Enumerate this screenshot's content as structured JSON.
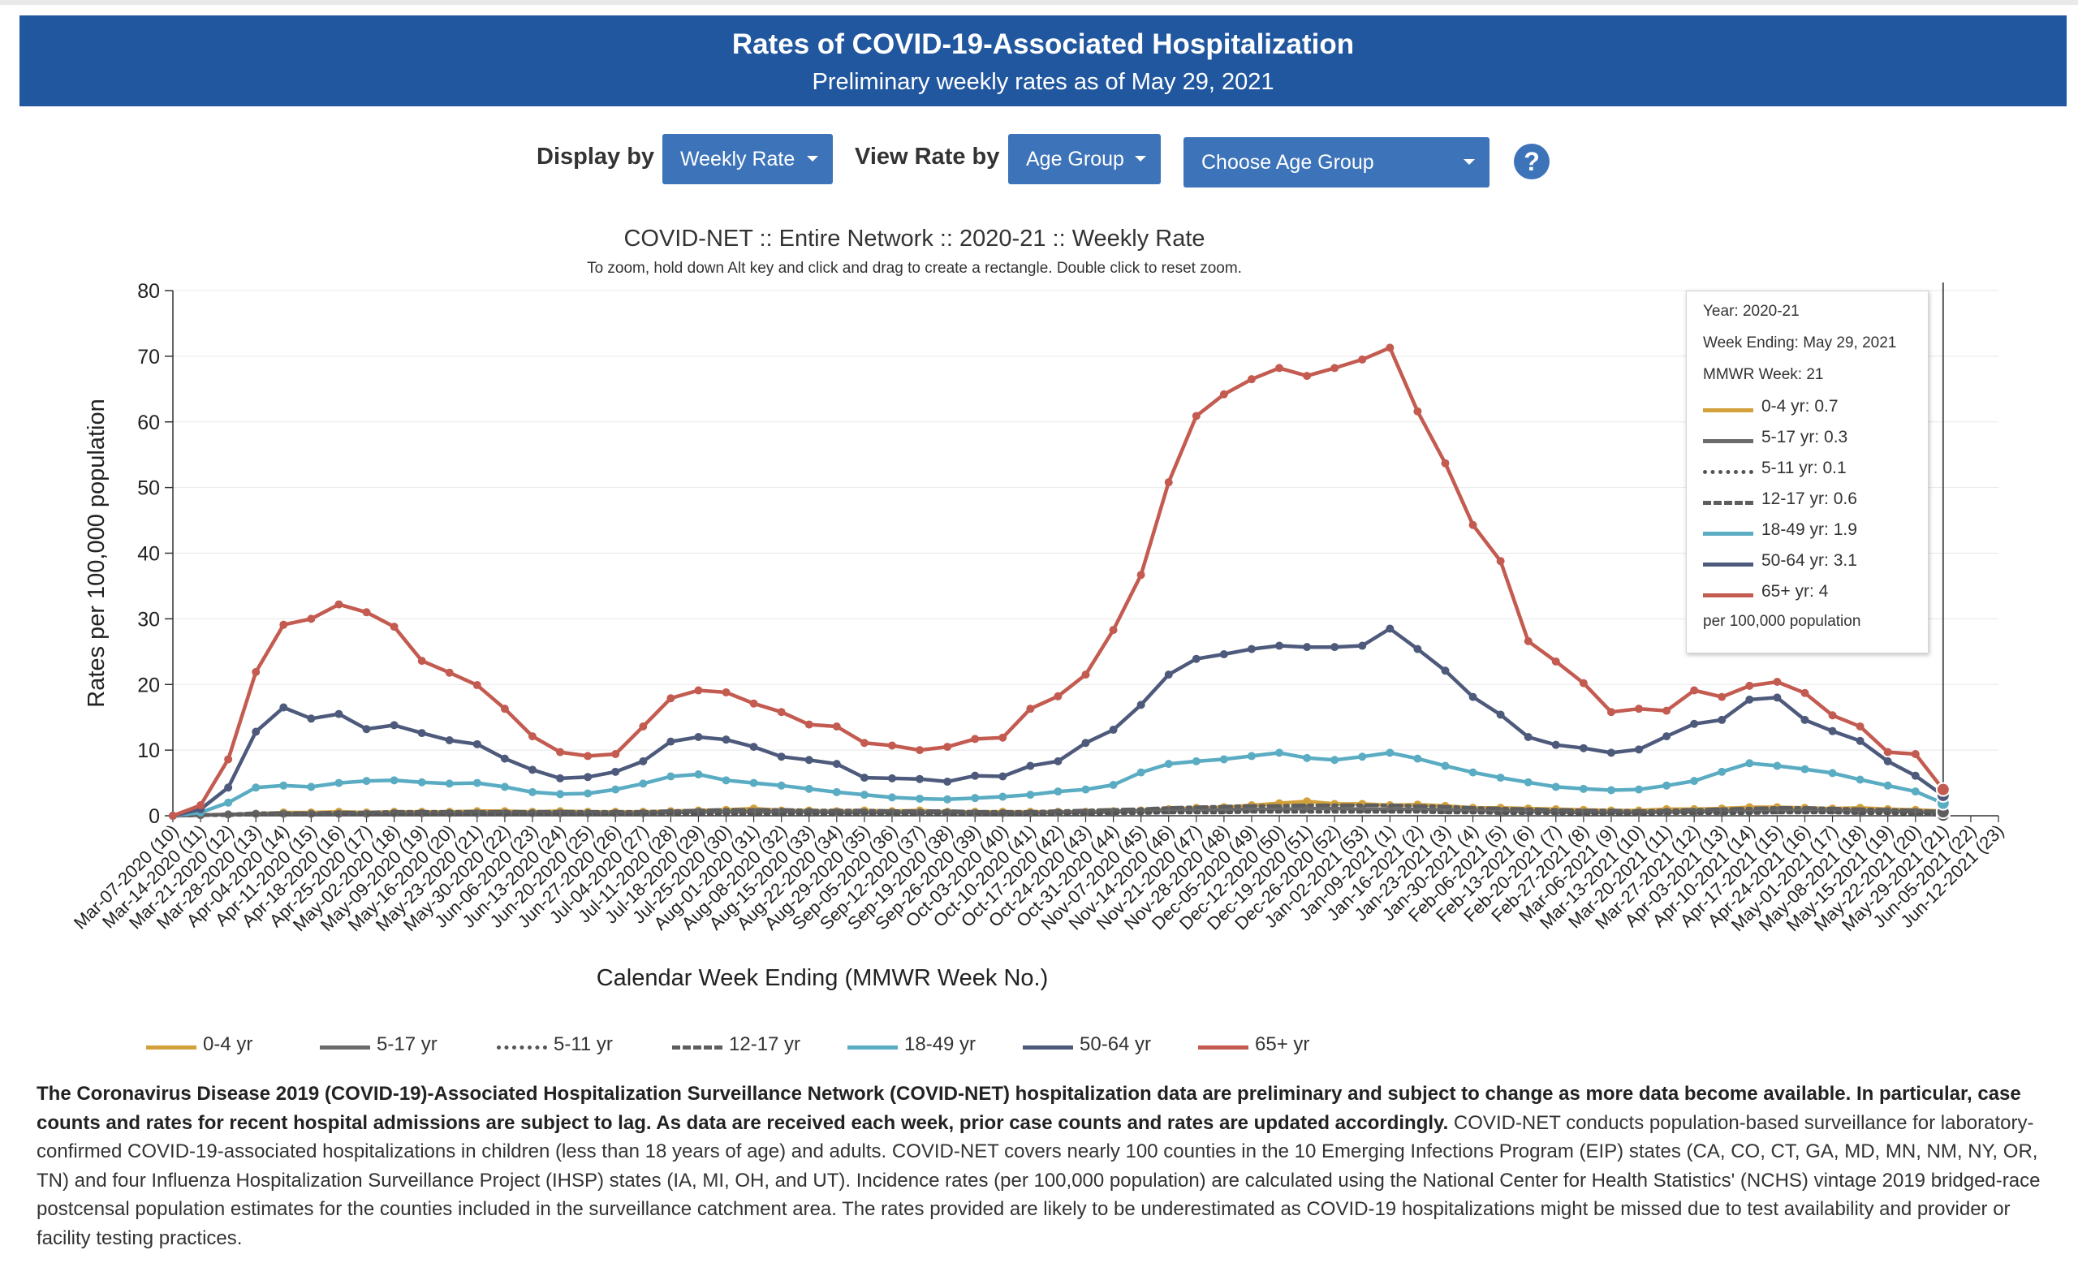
{
  "header": {
    "title": "Rates of COVID-19-Associated Hospitalization",
    "subtitle": "Preliminary weekly rates as of May 29, 2021"
  },
  "controls": {
    "display_by_label": "Display by",
    "display_by_value": "Weekly Rate",
    "view_rate_by_label": "View Rate by",
    "view_rate_by_value": "Age Group",
    "age_group_placeholder": "Choose Age Group",
    "help_glyph": "?"
  },
  "tooltip": {
    "year": "Year: 2020-21",
    "week_ending": "Week Ending: May 29, 2021",
    "mmwr_week": "MMWR Week: 21",
    "entries": [
      {
        "label": "0-4 yr: 0.7"
      },
      {
        "label": "5-17 yr: 0.3"
      },
      {
        "label": "5-11 yr: 0.1"
      },
      {
        "label": "12-17 yr: 0.6"
      },
      {
        "label": "18-49 yr: 1.9"
      },
      {
        "label": "50-64 yr: 3.1"
      },
      {
        "label": "65+ yr: 4"
      }
    ],
    "footer": "per 100,000 population"
  },
  "footnote": {
    "bold_text": "The Coronavirus Disease 2019 (COVID-19)-Associated Hospitalization Surveillance Network (COVID-NET) hospitalization data are preliminary and subject to change as more data become available. In particular, case counts and rates for recent hospital admissions are subject to lag. As data are received each week, prior case counts and rates are updated accordingly.",
    "text": " COVID-NET conducts population-based surveillance for laboratory-confirmed COVID-19-associated hospitalizations in children (less than 18 years of age) and adults. COVID-NET covers nearly 100 counties in the 10 Emerging Infections Program (EIP) states (CA, CO, CT, GA, MD, MN, NM, NY, OR, TN) and four Influenza Hospitalization Surveillance Project (IHSP) states (IA, MI, OH, and UT). Incidence rates (per 100,000 population) are calculated using the National Center for Health Statistics' (NCHS) vintage 2019 bridged-race postcensal population estimates for the counties included in the surveillance catchment area. The rates provided are likely to be underestimated as COVID-19 hospitalizations might be missed due to test availability and provider or facility testing practices."
  },
  "chart_data": {
    "type": "line",
    "title": "COVID-NET :: Entire Network :: 2020-21 :: Weekly Rate",
    "subtitle": "To zoom, hold down Alt key and click and drag to create a rectangle. Double click to reset zoom.",
    "xlabel": "Calendar Week Ending (MMWR Week No.)",
    "ylabel": "Rates per 100,000 population",
    "ylim": [
      0,
      80
    ],
    "yticks": [
      0,
      10,
      20,
      30,
      40,
      50,
      60,
      70,
      80
    ],
    "grid": true,
    "legend_position": "bottom",
    "marker_week_index": 64,
    "categories": [
      "Mar-07-2020 (10)",
      "Mar-14-2020 (11)",
      "Mar-21-2020 (12)",
      "Mar-28-2020 (13)",
      "Apr-04-2020 (14)",
      "Apr-11-2020 (15)",
      "Apr-18-2020 (16)",
      "Apr-25-2020 (17)",
      "May-02-2020 (18)",
      "May-09-2020 (19)",
      "May-16-2020 (20)",
      "May-23-2020 (21)",
      "May-30-2020 (22)",
      "Jun-06-2020 (23)",
      "Jun-13-2020 (24)",
      "Jun-20-2020 (25)",
      "Jun-27-2020 (26)",
      "Jul-04-2020 (27)",
      "Jul-11-2020 (28)",
      "Jul-18-2020 (29)",
      "Jul-25-2020 (30)",
      "Aug-01-2020 (31)",
      "Aug-08-2020 (32)",
      "Aug-15-2020 (33)",
      "Aug-22-2020 (34)",
      "Aug-29-2020 (35)",
      "Sep-05-2020 (36)",
      "Sep-12-2020 (37)",
      "Sep-19-2020 (38)",
      "Sep-26-2020 (39)",
      "Oct-03-2020 (40)",
      "Oct-10-2020 (41)",
      "Oct-17-2020 (42)",
      "Oct-24-2020 (43)",
      "Oct-31-2020 (44)",
      "Nov-07-2020 (45)",
      "Nov-14-2020 (46)",
      "Nov-21-2020 (47)",
      "Nov-28-2020 (48)",
      "Dec-05-2020 (49)",
      "Dec-12-2020 (50)",
      "Dec-19-2020 (51)",
      "Dec-26-2020 (52)",
      "Jan-02-2021 (53)",
      "Jan-09-2021 (1)",
      "Jan-16-2021 (2)",
      "Jan-23-2021 (3)",
      "Jan-30-2021 (4)",
      "Feb-06-2021 (5)",
      "Feb-13-2021 (6)",
      "Feb-20-2021 (7)",
      "Feb-27-2021 (8)",
      "Mar-06-2021 (9)",
      "Mar-13-2021 (10)",
      "Mar-20-2021 (11)",
      "Mar-27-2021 (12)",
      "Apr-03-2021 (13)",
      "Apr-10-2021 (14)",
      "Apr-17-2021 (15)",
      "Apr-24-2021 (16)",
      "May-01-2021 (17)",
      "May-08-2021 (18)",
      "May-15-2021 (19)",
      "May-22-2021 (20)",
      "May-29-2021 (21)",
      "Jun-05-2021 (22)",
      "Jun-12-2021 (23)"
    ],
    "series": [
      {
        "name": "0-4 yr",
        "color": "#d3a13c",
        "dash": "solid",
        "values": [
          0,
          0.1,
          0.2,
          0.3,
          0.5,
          0.5,
          0.6,
          0.5,
          0.6,
          0.6,
          0.6,
          0.7,
          0.7,
          0.6,
          0.7,
          0.6,
          0.6,
          0.6,
          0.7,
          0.8,
          0.9,
          1.1,
          0.8,
          0.8,
          0.7,
          0.8,
          0.7,
          0.8,
          0.6,
          0.6,
          0.6,
          0.6,
          0.6,
          0.6,
          0.7,
          0.8,
          1.0,
          1.2,
          1.3,
          1.6,
          1.9,
          2.2,
          1.8,
          1.8,
          1.6,
          1.7,
          1.5,
          1.2,
          1.2,
          1.1,
          1.0,
          0.9,
          0.8,
          0.8,
          1.0,
          1.0,
          1.1,
          1.3,
          1.3,
          1.2,
          1.1,
          1.2,
          1.0,
          0.9,
          0.7,
          null,
          null
        ]
      },
      {
        "name": "5-17 yr",
        "color": "#6b6b6b",
        "dash": "solid",
        "values": [
          0,
          0.1,
          0.2,
          0.3,
          0.3,
          0.3,
          0.3,
          0.3,
          0.4,
          0.4,
          0.4,
          0.4,
          0.4,
          0.4,
          0.4,
          0.4,
          0.4,
          0.4,
          0.5,
          0.6,
          0.6,
          0.6,
          0.6,
          0.6,
          0.5,
          0.5,
          0.5,
          0.5,
          0.5,
          0.4,
          0.4,
          0.4,
          0.5,
          0.5,
          0.6,
          0.7,
          0.8,
          0.9,
          0.9,
          1.0,
          1.0,
          1.1,
          1.1,
          1.0,
          1.0,
          1.0,
          0.9,
          0.8,
          0.7,
          0.7,
          0.6,
          0.5,
          0.5,
          0.5,
          0.6,
          0.6,
          0.7,
          0.7,
          0.8,
          0.8,
          0.8,
          0.7,
          0.7,
          0.6,
          0.3,
          null,
          null
        ]
      },
      {
        "name": "5-11 yr",
        "color": "#555555",
        "dash": "dot",
        "values": [
          0,
          0.1,
          0.1,
          0.2,
          0.2,
          0.2,
          0.2,
          0.2,
          0.2,
          0.2,
          0.2,
          0.2,
          0.2,
          0.2,
          0.2,
          0.2,
          0.2,
          0.2,
          0.3,
          0.3,
          0.3,
          0.3,
          0.3,
          0.3,
          0.3,
          0.3,
          0.3,
          0.3,
          0.3,
          0.3,
          0.3,
          0.3,
          0.3,
          0.3,
          0.4,
          0.4,
          0.5,
          0.5,
          0.5,
          0.6,
          0.6,
          0.6,
          0.6,
          0.6,
          0.6,
          0.6,
          0.5,
          0.5,
          0.4,
          0.4,
          0.4,
          0.3,
          0.3,
          0.3,
          0.4,
          0.4,
          0.4,
          0.4,
          0.5,
          0.5,
          0.5,
          0.4,
          0.4,
          0.3,
          0.1,
          null,
          null
        ]
      },
      {
        "name": "12-17 yr",
        "color": "#5e5e5e",
        "dash": "dashdot",
        "values": [
          0,
          0.1,
          0.2,
          0.4,
          0.4,
          0.4,
          0.5,
          0.5,
          0.6,
          0.6,
          0.6,
          0.6,
          0.6,
          0.6,
          0.6,
          0.6,
          0.6,
          0.6,
          0.7,
          0.8,
          0.9,
          0.9,
          0.9,
          0.8,
          0.8,
          0.8,
          0.7,
          0.7,
          0.7,
          0.6,
          0.6,
          0.6,
          0.7,
          0.8,
          0.9,
          1.0,
          1.2,
          1.3,
          1.4,
          1.5,
          1.5,
          1.6,
          1.6,
          1.6,
          1.6,
          1.5,
          1.4,
          1.2,
          1.1,
          1.0,
          0.9,
          0.8,
          0.8,
          0.7,
          0.8,
          0.9,
          1.0,
          1.1,
          1.2,
          1.2,
          1.1,
          1.0,
          0.9,
          0.8,
          0.6,
          null,
          null
        ]
      },
      {
        "name": "18-49 yr",
        "color": "#5aacc3",
        "dash": "solid",
        "values": [
          0,
          0.5,
          2.0,
          4.3,
          4.6,
          4.4,
          5.0,
          5.3,
          5.4,
          5.1,
          4.9,
          5.0,
          4.4,
          3.6,
          3.3,
          3.4,
          4.0,
          4.9,
          6.0,
          6.3,
          5.4,
          5.0,
          4.6,
          4.1,
          3.6,
          3.2,
          2.8,
          2.6,
          2.5,
          2.7,
          2.9,
          3.2,
          3.7,
          4.0,
          4.7,
          6.6,
          7.9,
          8.3,
          8.6,
          9.1,
          9.6,
          8.8,
          8.5,
          9.0,
          9.6,
          8.7,
          7.6,
          6.6,
          5.8,
          5.1,
          4.4,
          4.1,
          3.9,
          4.0,
          4.6,
          5.3,
          6.7,
          8.0,
          7.6,
          7.1,
          6.5,
          5.5,
          4.6,
          3.7,
          1.9,
          null,
          null
        ]
      },
      {
        "name": "50-64 yr",
        "color": "#4d5a7b",
        "dash": "solid",
        "values": [
          0,
          1.0,
          4.3,
          12.8,
          16.5,
          14.8,
          15.5,
          13.2,
          13.8,
          12.6,
          11.5,
          10.9,
          8.7,
          7.0,
          5.7,
          5.9,
          6.7,
          8.3,
          11.3,
          12.0,
          11.6,
          10.5,
          9.0,
          8.5,
          7.9,
          5.8,
          5.7,
          5.6,
          5.2,
          6.1,
          6.0,
          7.6,
          8.3,
          11.1,
          13.1,
          16.9,
          21.5,
          23.9,
          24.6,
          25.4,
          25.9,
          25.7,
          25.7,
          25.9,
          28.5,
          25.4,
          22.1,
          18.1,
          15.4,
          12.0,
          10.8,
          10.3,
          9.6,
          10.1,
          12.1,
          14.0,
          14.6,
          17.7,
          18.0,
          14.6,
          12.9,
          11.4,
          8.3,
          6.1,
          3.1,
          null,
          null
        ]
      },
      {
        "name": "65+ yr",
        "color": "#c35b51",
        "dash": "solid",
        "values": [
          0,
          1.6,
          8.6,
          21.9,
          29.1,
          30.0,
          32.2,
          31.0,
          28.8,
          23.6,
          21.8,
          19.9,
          16.3,
          12.1,
          9.7,
          9.1,
          9.4,
          13.6,
          17.9,
          19.1,
          18.8,
          17.1,
          15.8,
          13.9,
          13.6,
          11.1,
          10.7,
          10.0,
          10.5,
          11.7,
          11.9,
          16.3,
          18.2,
          21.5,
          28.3,
          36.7,
          50.8,
          60.9,
          64.2,
          66.5,
          68.2,
          67.0,
          68.2,
          69.5,
          71.3,
          61.6,
          53.7,
          44.3,
          38.8,
          26.6,
          23.5,
          20.2,
          15.8,
          16.3,
          16.0,
          19.1,
          18.1,
          19.8,
          20.4,
          18.7,
          15.3,
          13.6,
          9.7,
          9.4,
          4.0,
          null,
          null
        ]
      }
    ]
  }
}
